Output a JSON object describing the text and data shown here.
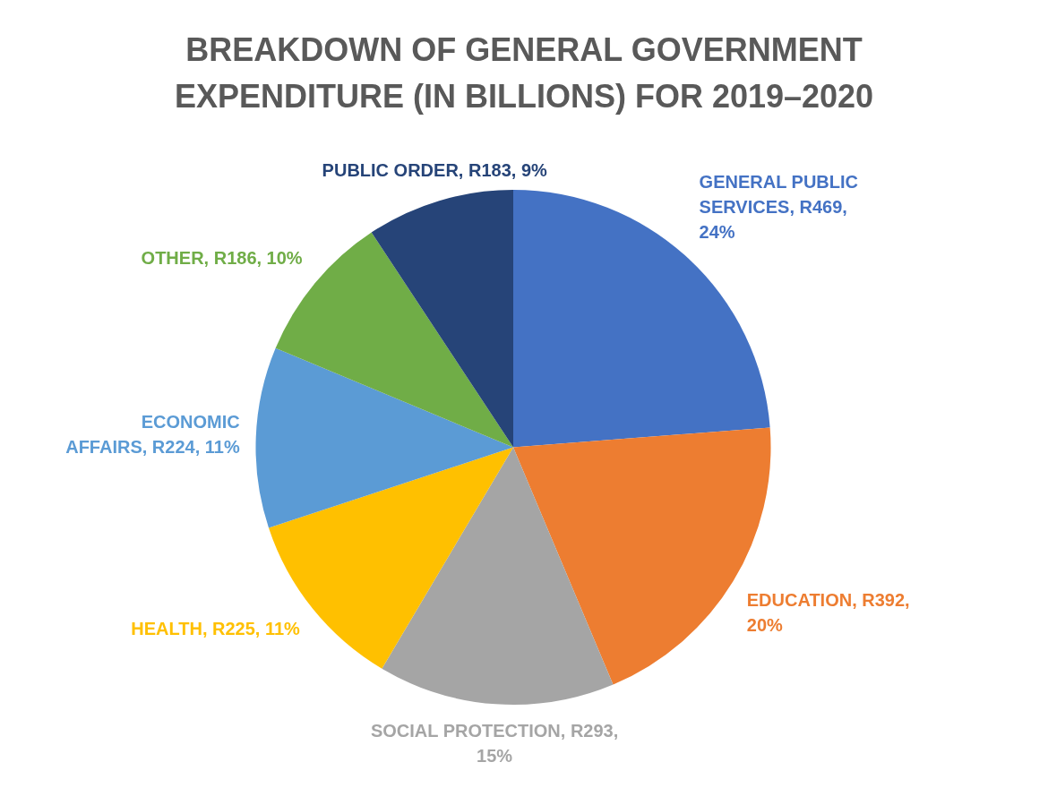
{
  "chart_data": {
    "type": "pie",
    "title": "BREAKDOWN OF GENERAL GOVERNMENT EXPENDITURE (IN BILLIONS) FOR 2019–2020",
    "categories": [
      "GENERAL PUBLIC SERVICES",
      "EDUCATION",
      "SOCIAL PROTECTION",
      "HEALTH",
      "ECONOMIC AFFAIRS",
      "OTHER",
      "PUBLIC ORDER"
    ],
    "values": [
      469,
      392,
      293,
      225,
      224,
      186,
      183
    ],
    "colors": [
      "#4472c4",
      "#ed7d31",
      "#a5a5a5",
      "#ffc000",
      "#5b9bd5",
      "#70ad47",
      "#264478"
    ],
    "value_labels": [
      "R469, 24%",
      "R392, 20%",
      "R293, 15%",
      "R225, 11%",
      "R224, 11%",
      "R186, 10%",
      "R183, 9%"
    ],
    "legend": false
  }
}
